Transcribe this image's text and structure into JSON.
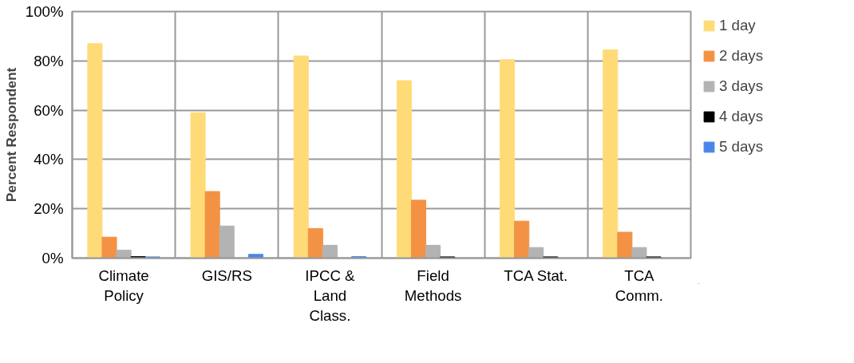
{
  "chart_data": {
    "type": "bar",
    "ylabel": "Percent Respondent",
    "categories": [
      "Climate\nPolicy",
      "GIS/RS",
      "IPCC &\nLand\nClass.",
      "Field\nMethods",
      "TCA Stat.",
      "TCA\nComm."
    ],
    "series": [
      {
        "name": "1 day",
        "color": "#ffdb78",
        "values": [
          87,
          59,
          82,
          72,
          80.5,
          84.5
        ]
      },
      {
        "name": "2 days",
        "color": "#f39244",
        "values": [
          8.5,
          27,
          12,
          23.5,
          15,
          10.5
        ]
      },
      {
        "name": "3 days",
        "color": "#b3b3b3",
        "values": [
          3.2,
          13,
          5.2,
          5.2,
          4.3,
          4.3
        ]
      },
      {
        "name": "4 days",
        "color": "#000000",
        "values": [
          0.6,
          0,
          0,
          0.5,
          0.5,
          0.5
        ]
      },
      {
        "name": "5 days",
        "color": "#4a86e8",
        "values": [
          0.5,
          1.5,
          0.6,
          0,
          0,
          0
        ]
      }
    ],
    "ylim": [
      0,
      100
    ],
    "yticks": [
      {
        "value": 0,
        "label": "0%"
      },
      {
        "value": 20,
        "label": "20%"
      },
      {
        "value": 40,
        "label": "40%"
      },
      {
        "value": 60,
        "label": "60%"
      },
      {
        "value": 80,
        "label": "80%"
      },
      {
        "value": 100,
        "label": "100%"
      }
    ],
    "grid": true,
    "legend": "right"
  }
}
